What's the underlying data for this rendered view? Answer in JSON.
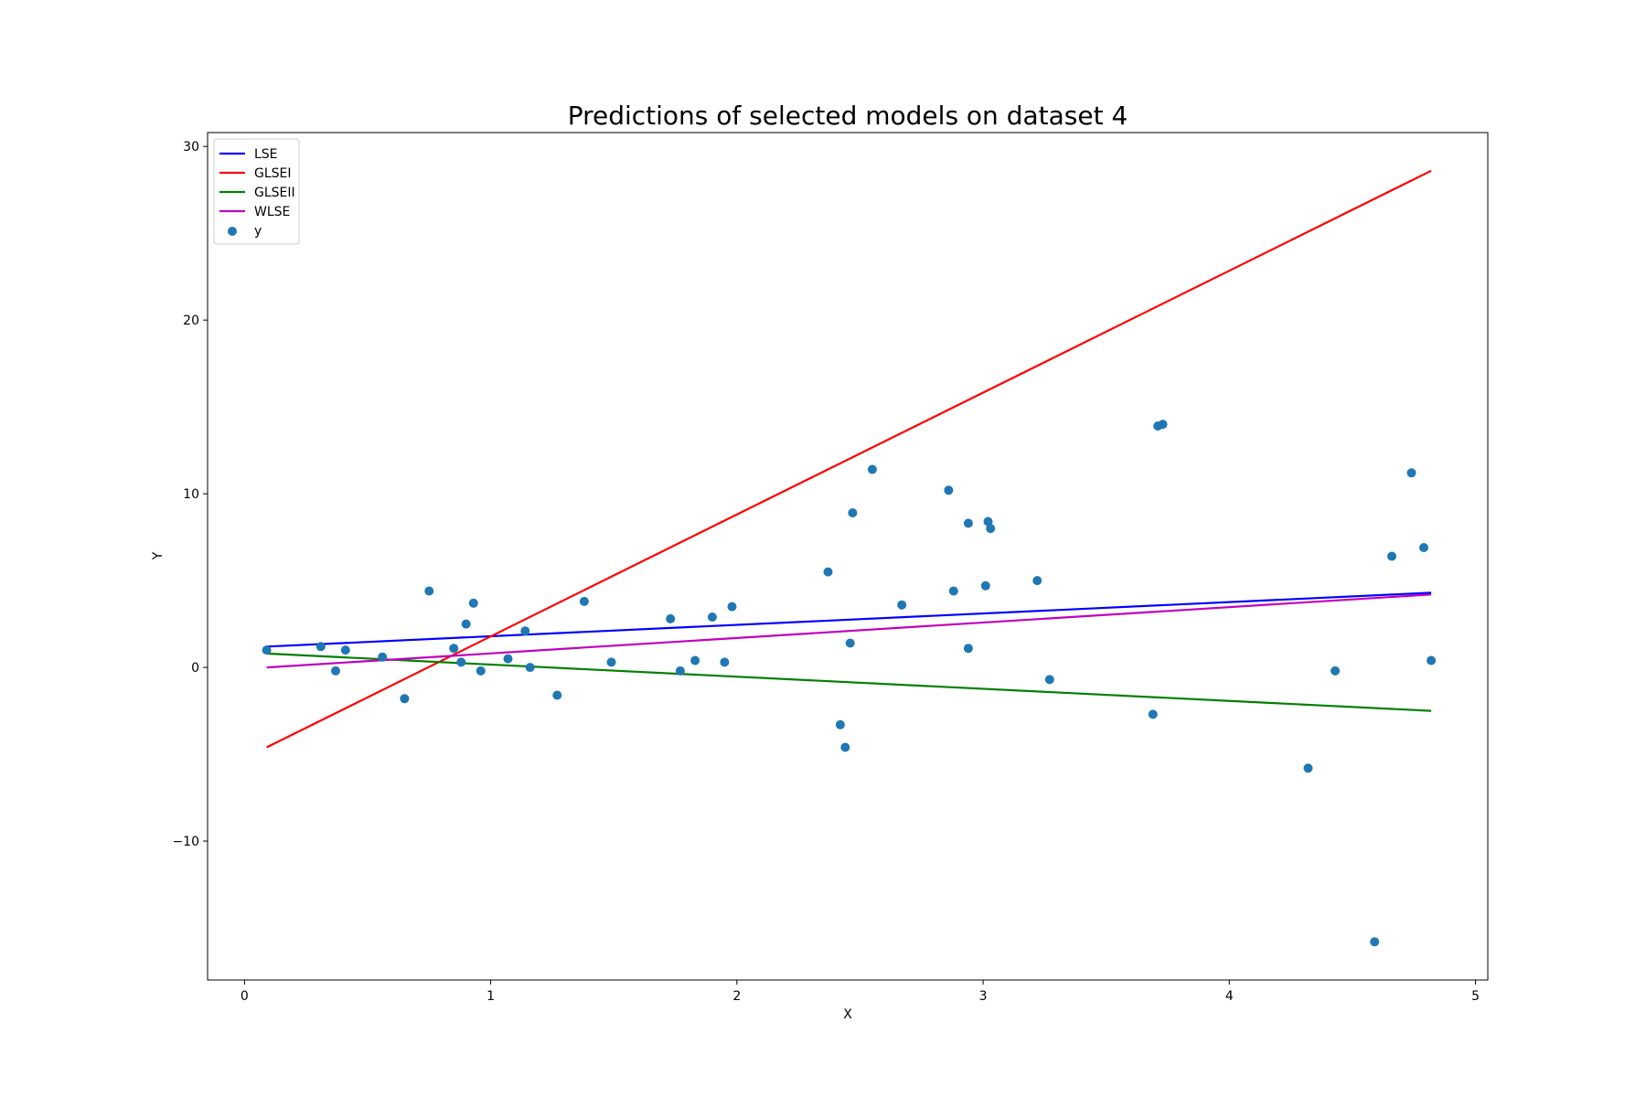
{
  "chart_data": {
    "type": "scatter",
    "title": "Predictions of selected models on dataset 4",
    "xlabel": "X",
    "ylabel": "Y",
    "xlim": [
      -0.15,
      5.05
    ],
    "ylim": [
      -18,
      30.8
    ],
    "xticks": [
      0,
      1,
      2,
      3,
      4,
      5
    ],
    "yticks": [
      -10,
      0,
      10,
      20,
      30
    ],
    "xtick_labels": [
      "0",
      "1",
      "2",
      "3",
      "4",
      "5"
    ],
    "ytick_labels": [
      "−10",
      "0",
      "10",
      "20",
      "30"
    ],
    "grid": false,
    "legend_position": "upper left",
    "lines": [
      {
        "name": "LSE",
        "color": "#0000ff",
        "x": [
          0.09,
          4.82
        ],
        "y": [
          1.2,
          4.3
        ]
      },
      {
        "name": "GLSEI",
        "color": "#ff0000",
        "x": [
          0.09,
          4.82
        ],
        "y": [
          -4.6,
          28.6
        ]
      },
      {
        "name": "GLSEII",
        "color": "#008000",
        "x": [
          0.09,
          4.82
        ],
        "y": [
          0.8,
          -2.5
        ]
      },
      {
        "name": "WLSE",
        "color": "#bf00bf",
        "x": [
          0.09,
          4.82
        ],
        "y": [
          0.0,
          4.2
        ]
      }
    ],
    "scatter": {
      "name": "y",
      "color": "#1f77b4",
      "points": [
        [
          0.09,
          1.0
        ],
        [
          0.31,
          1.2
        ],
        [
          0.37,
          -0.2
        ],
        [
          0.41,
          1.0
        ],
        [
          0.56,
          0.6
        ],
        [
          0.65,
          -1.8
        ],
        [
          0.75,
          4.4
        ],
        [
          0.85,
          1.1
        ],
        [
          0.88,
          0.3
        ],
        [
          0.9,
          2.5
        ],
        [
          0.93,
          3.7
        ],
        [
          0.96,
          -0.2
        ],
        [
          1.07,
          0.5
        ],
        [
          1.14,
          2.1
        ],
        [
          1.16,
          0.0
        ],
        [
          1.27,
          -1.6
        ],
        [
          1.38,
          3.8
        ],
        [
          1.49,
          0.3
        ],
        [
          1.73,
          2.8
        ],
        [
          1.77,
          -0.2
        ],
        [
          1.83,
          0.4
        ],
        [
          1.9,
          2.9
        ],
        [
          1.95,
          0.3
        ],
        [
          1.98,
          3.5
        ],
        [
          2.37,
          5.5
        ],
        [
          2.42,
          -3.3
        ],
        [
          2.44,
          -4.6
        ],
        [
          2.46,
          1.4
        ],
        [
          2.47,
          8.9
        ],
        [
          2.55,
          11.4
        ],
        [
          2.67,
          3.6
        ],
        [
          2.86,
          10.2
        ],
        [
          2.88,
          4.4
        ],
        [
          2.94,
          8.3
        ],
        [
          2.94,
          1.1
        ],
        [
          3.01,
          4.7
        ],
        [
          3.02,
          8.4
        ],
        [
          3.03,
          8.0
        ],
        [
          3.22,
          5.0
        ],
        [
          3.27,
          -0.7
        ],
        [
          3.69,
          -2.7
        ],
        [
          3.71,
          13.9
        ],
        [
          3.73,
          14.0
        ],
        [
          4.32,
          -5.8
        ],
        [
          4.43,
          -0.2
        ],
        [
          4.59,
          -15.8
        ],
        [
          4.66,
          6.4
        ],
        [
          4.74,
          11.2
        ],
        [
          4.79,
          6.9
        ],
        [
          4.82,
          0.4
        ]
      ]
    }
  }
}
